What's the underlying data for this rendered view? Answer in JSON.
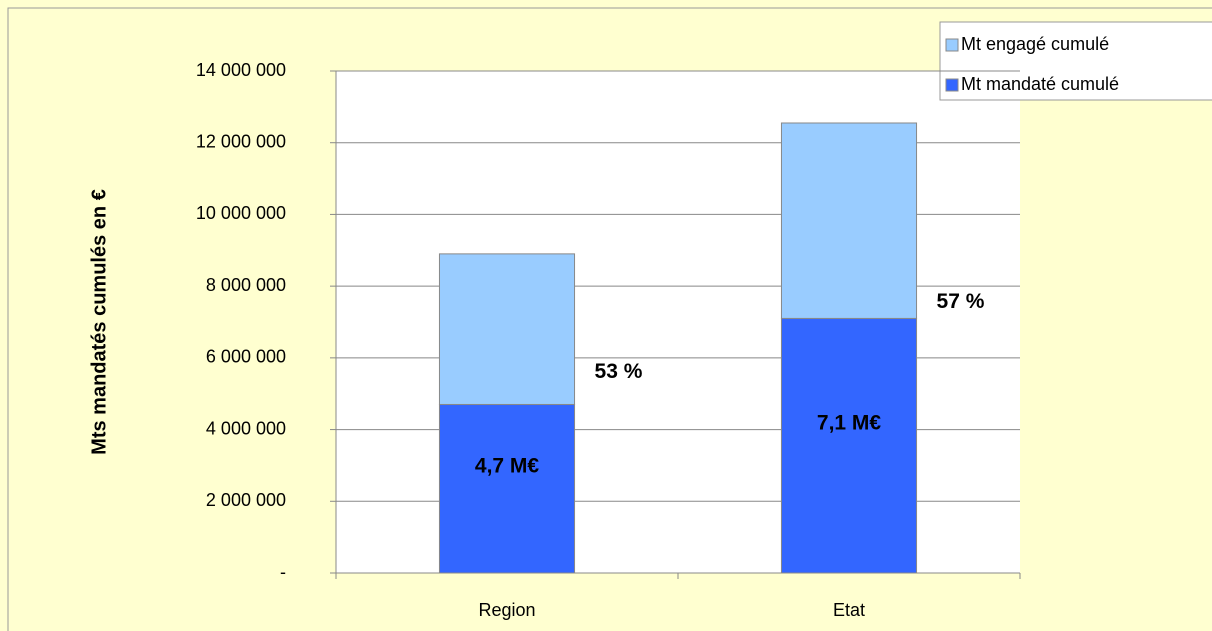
{
  "chart_data": {
    "type": "stacked-bar",
    "y_label": "Mts mandatés cumulés en €",
    "categories": [
      "Region",
      "Etat"
    ],
    "series": [
      {
        "name": "Mt mandaté cumulé",
        "color": "#3366ff",
        "values": [
          4700000,
          7100000
        ],
        "value_labels": [
          "4,7 M€",
          "7,1 M€"
        ]
      },
      {
        "name": "Mt engagé cumulé",
        "color": "#99ccff",
        "values": [
          4200000,
          5450000
        ]
      }
    ],
    "annotations": [
      "53 %",
      "57 %"
    ],
    "ylim": [
      0,
      14000000
    ],
    "yticks": [
      {
        "value": 0,
        "label": "-"
      },
      {
        "value": 2000000,
        "label": "2 000 000"
      },
      {
        "value": 4000000,
        "label": "4 000 000"
      },
      {
        "value": 6000000,
        "label": "6 000 000"
      },
      {
        "value": 8000000,
        "label": "8 000 000"
      },
      {
        "value": 10000000,
        "label": "10 000 000"
      },
      {
        "value": 12000000,
        "label": "12 000 000"
      },
      {
        "value": 14000000,
        "label": "14 000 000"
      }
    ],
    "grid": true
  }
}
